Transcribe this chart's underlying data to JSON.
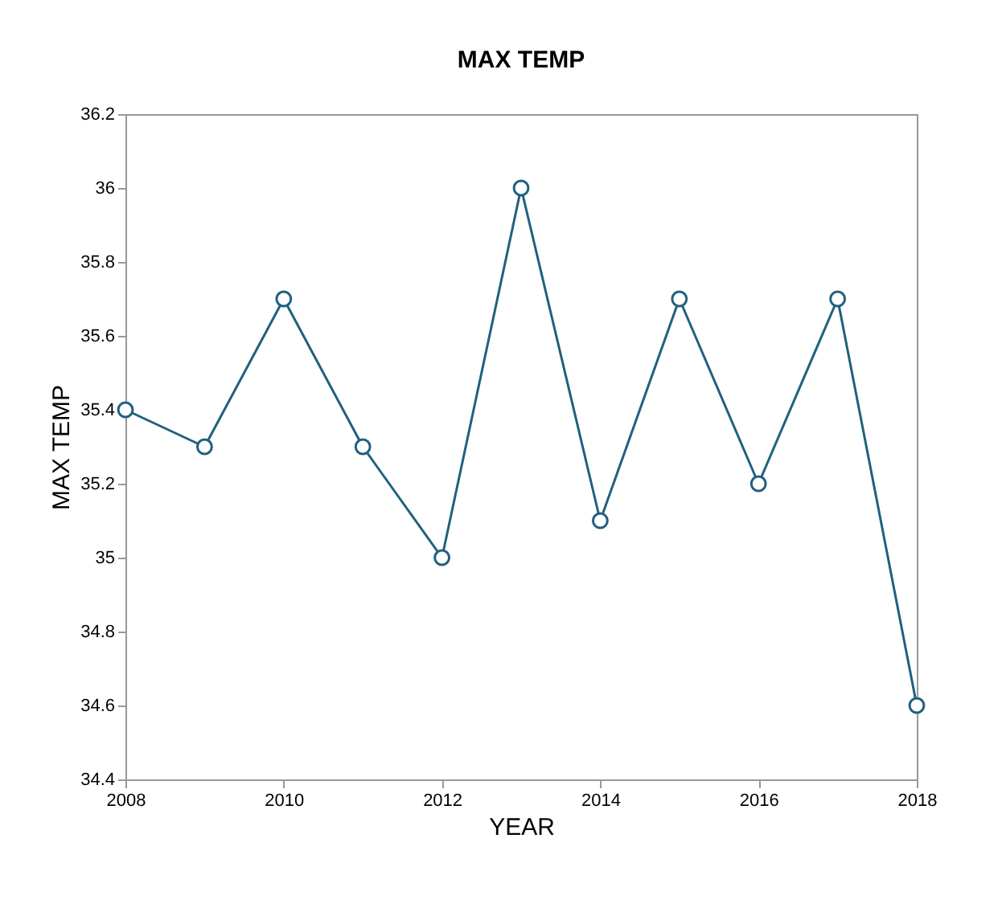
{
  "chart_data": {
    "type": "line",
    "title": "MAX TEMP",
    "xlabel": "YEAR",
    "ylabel": "MAX TEMP",
    "x": [
      2008,
      2009,
      2010,
      2011,
      2012,
      2013,
      2014,
      2015,
      2016,
      2017,
      2018
    ],
    "series": [
      {
        "color": "#21607f",
        "values": [
          35.4,
          35.3,
          35.7,
          35.3,
          35.0,
          36.0,
          35.1,
          35.7,
          35.2,
          35.7,
          34.6
        ]
      }
    ],
    "xlim": [
      2008,
      2018
    ],
    "xticks": [
      2008,
      2010,
      2012,
      2014,
      2016,
      2018
    ],
    "ylim": [
      34.4,
      36.2
    ],
    "yticks": [
      34.4,
      34.6,
      34.8,
      35,
      35.2,
      35.4,
      35.6,
      35.8,
      36,
      36.2
    ],
    "grid": false,
    "marker": "circle",
    "line_style": "solid"
  }
}
